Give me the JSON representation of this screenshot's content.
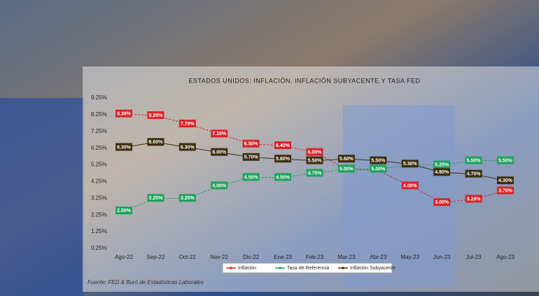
{
  "chart_data": {
    "type": "line",
    "title": "ESTADOS UNIDOS: INFLACIÓN, INFLACIÓN SUBYACENTE Y TASA FED",
    "source": "Fuente: FED & Buró de Estadísticas Laborales",
    "categories": [
      "Ago-22",
      "Sep-22",
      "Oct-22",
      "Nov-22",
      "Dic-22",
      "Ene-23",
      "Feb-23",
      "Mar-23",
      "Abr-23",
      "May-23",
      "Jun-23",
      "Jul-23",
      "Ago-23"
    ],
    "series": [
      {
        "name": "Inflación",
        "color": "#d9232a",
        "values": [
          8.3,
          8.2,
          7.7,
          7.1,
          6.5,
          6.4,
          6.0,
          5.0,
          4.9,
          4.0,
          3.0,
          3.2,
          3.7
        ],
        "value_labels": [
          "8.30%",
          "8.20%",
          "7.70%",
          "7.10%",
          "6.50%",
          "6.40%",
          "6.00%",
          null,
          null,
          "4.00%",
          "3.00%",
          "3.20%",
          "3.70%"
        ]
      },
      {
        "name": "Tasa de Referencia",
        "color": "#1fa35c",
        "values": [
          2.5,
          3.25,
          3.25,
          4.0,
          4.5,
          4.5,
          4.75,
          5.0,
          5.0,
          5.25,
          5.25,
          5.5,
          5.5
        ],
        "value_labels": [
          "2.50%",
          "3.25%",
          "3.25%",
          "4.00%",
          "4.50%",
          "4.50%",
          "4.75%",
          "5.00%",
          "5.00%",
          null,
          "5.25%",
          "5.50%",
          "5.50%"
        ]
      },
      {
        "name": "Inflación Subyacente",
        "color": "#3d2e0e",
        "values": [
          6.3,
          6.6,
          6.3,
          6.0,
          5.7,
          5.6,
          5.5,
          5.6,
          5.5,
          5.3,
          4.8,
          4.7,
          4.3
        ],
        "value_labels": [
          "6.30%",
          "6.60%",
          "6.30%",
          "6.00%",
          "5.70%",
          "5.60%",
          "5.50%",
          "5.60%",
          "5.50%",
          "5.30%",
          "4.80%",
          "4.70%",
          "4.30%"
        ]
      }
    ],
    "ylim": [
      0.25,
      9.25
    ],
    "yticks": [
      {
        "value": 0.25,
        "label": "0.25%"
      },
      {
        "value": 1.25,
        "label": "1.25%"
      },
      {
        "value": 2.25,
        "label": "2.25%"
      },
      {
        "value": 3.25,
        "label": "3.25%"
      },
      {
        "value": 4.25,
        "label": "4.25%"
      },
      {
        "value": 5.25,
        "label": "5.25%"
      },
      {
        "value": 6.25,
        "label": "6.25%"
      },
      {
        "value": 7.25,
        "label": "7.25%"
      },
      {
        "value": 8.25,
        "label": "8.25%"
      },
      {
        "value": 9.25,
        "label": "9.25%"
      }
    ],
    "grid": false,
    "legend": "bottom"
  }
}
